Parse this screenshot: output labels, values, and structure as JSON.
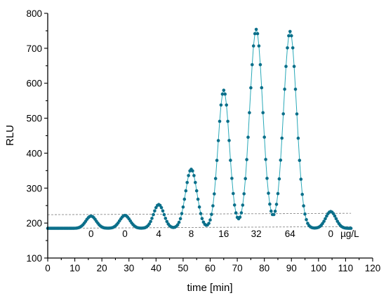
{
  "chart_data": {
    "type": "scatter",
    "title": "",
    "xlabel": "time [min]",
    "ylabel": "RLU",
    "xlim": [
      0,
      120
    ],
    "ylim": [
      100,
      800
    ],
    "x_ticks": [
      "0",
      "10",
      "20",
      "30",
      "40",
      "50",
      "60",
      "70",
      "80",
      "90",
      "100",
      "110",
      "120"
    ],
    "y_ticks": [
      "100",
      "200",
      "300",
      "400",
      "500",
      "600",
      "700",
      "800"
    ],
    "colors": {
      "points": "#0b6f8a",
      "line": "#2aa9b8",
      "baseline": "#8a8a8a"
    },
    "baseline_value": 185,
    "peaks": [
      {
        "label": "0",
        "x": 16,
        "y": 220
      },
      {
        "label": "0",
        "x": 28.5,
        "y": 222
      },
      {
        "label": "4",
        "x": 41,
        "y": 253
      },
      {
        "label": "8",
        "x": 53,
        "y": 354
      },
      {
        "label": "16",
        "x": 65,
        "y": 580
      },
      {
        "label": "32",
        "x": 77,
        "y": 754
      },
      {
        "label": "64",
        "x": 89.5,
        "y": 748
      },
      {
        "label": "0",
        "x": 104.5,
        "y": 233
      }
    ],
    "unit_label": "µg/L",
    "reference_lines": [
      {
        "x": [
          0,
          112
        ],
        "y": [
          185,
          190
        ]
      },
      {
        "x": [
          0,
          112
        ],
        "y": [
          224,
          228
        ]
      }
    ]
  }
}
